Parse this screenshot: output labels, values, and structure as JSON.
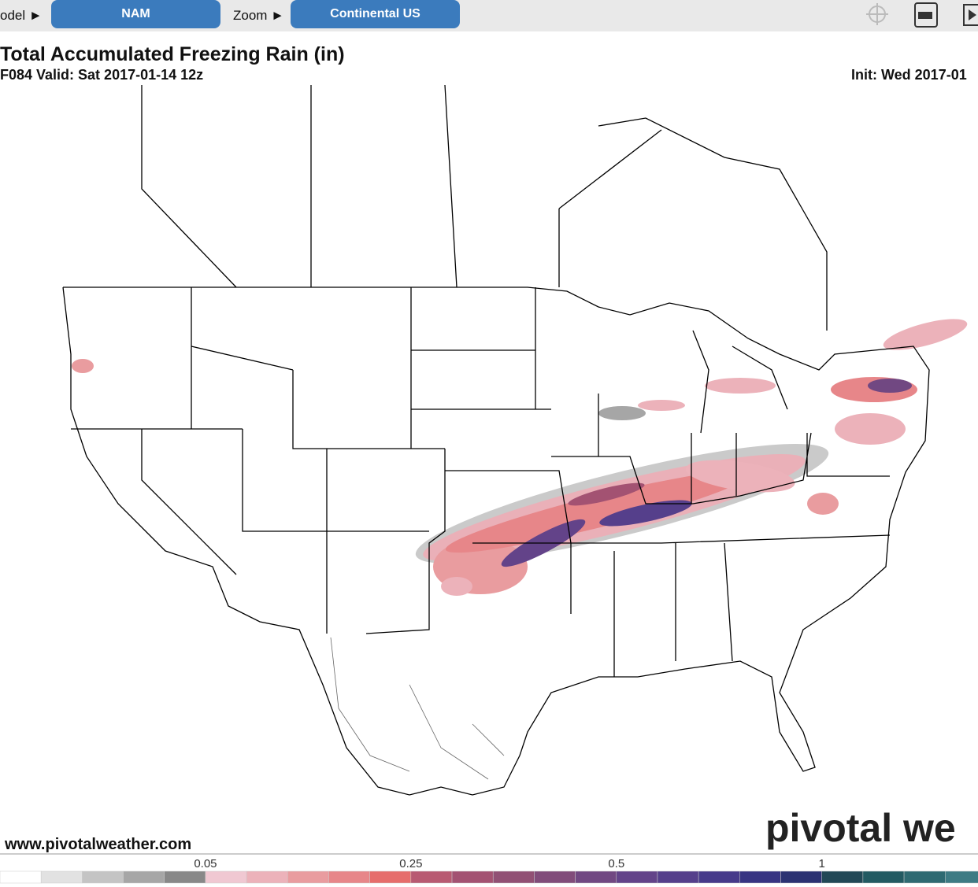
{
  "toolbar": {
    "model_label": "odel ►",
    "model": "NAM",
    "zoom_label": "Zoom ►",
    "zoom": "Continental US"
  },
  "header": {
    "title": "Total Accumulated Freezing Rain (in)",
    "valid": "F084 Valid: Sat 2017-01-14 12z",
    "init": "Init: Wed 2017-01"
  },
  "footer": {
    "url": "www.pivotalweather.com",
    "watermark": "pivotal we"
  },
  "colorbar": {
    "colors": [
      "#ffffff",
      "#e2e2e2",
      "#c4c4c4",
      "#a6a6a6",
      "#888888",
      "#f0c8d2",
      "#ecb2ba",
      "#e99c9f",
      "#e78689",
      "#e66e6c",
      "#b85a72",
      "#a35272",
      "#915074",
      "#814c7a",
      "#714882",
      "#634389",
      "#553f8b",
      "#463a8a",
      "#373482",
      "#2b3272",
      "#224856",
      "#235a62",
      "#2f6a72",
      "#3e7b84"
    ],
    "ticks": [
      0.05,
      0.25,
      0.5,
      1
    ]
  }
}
